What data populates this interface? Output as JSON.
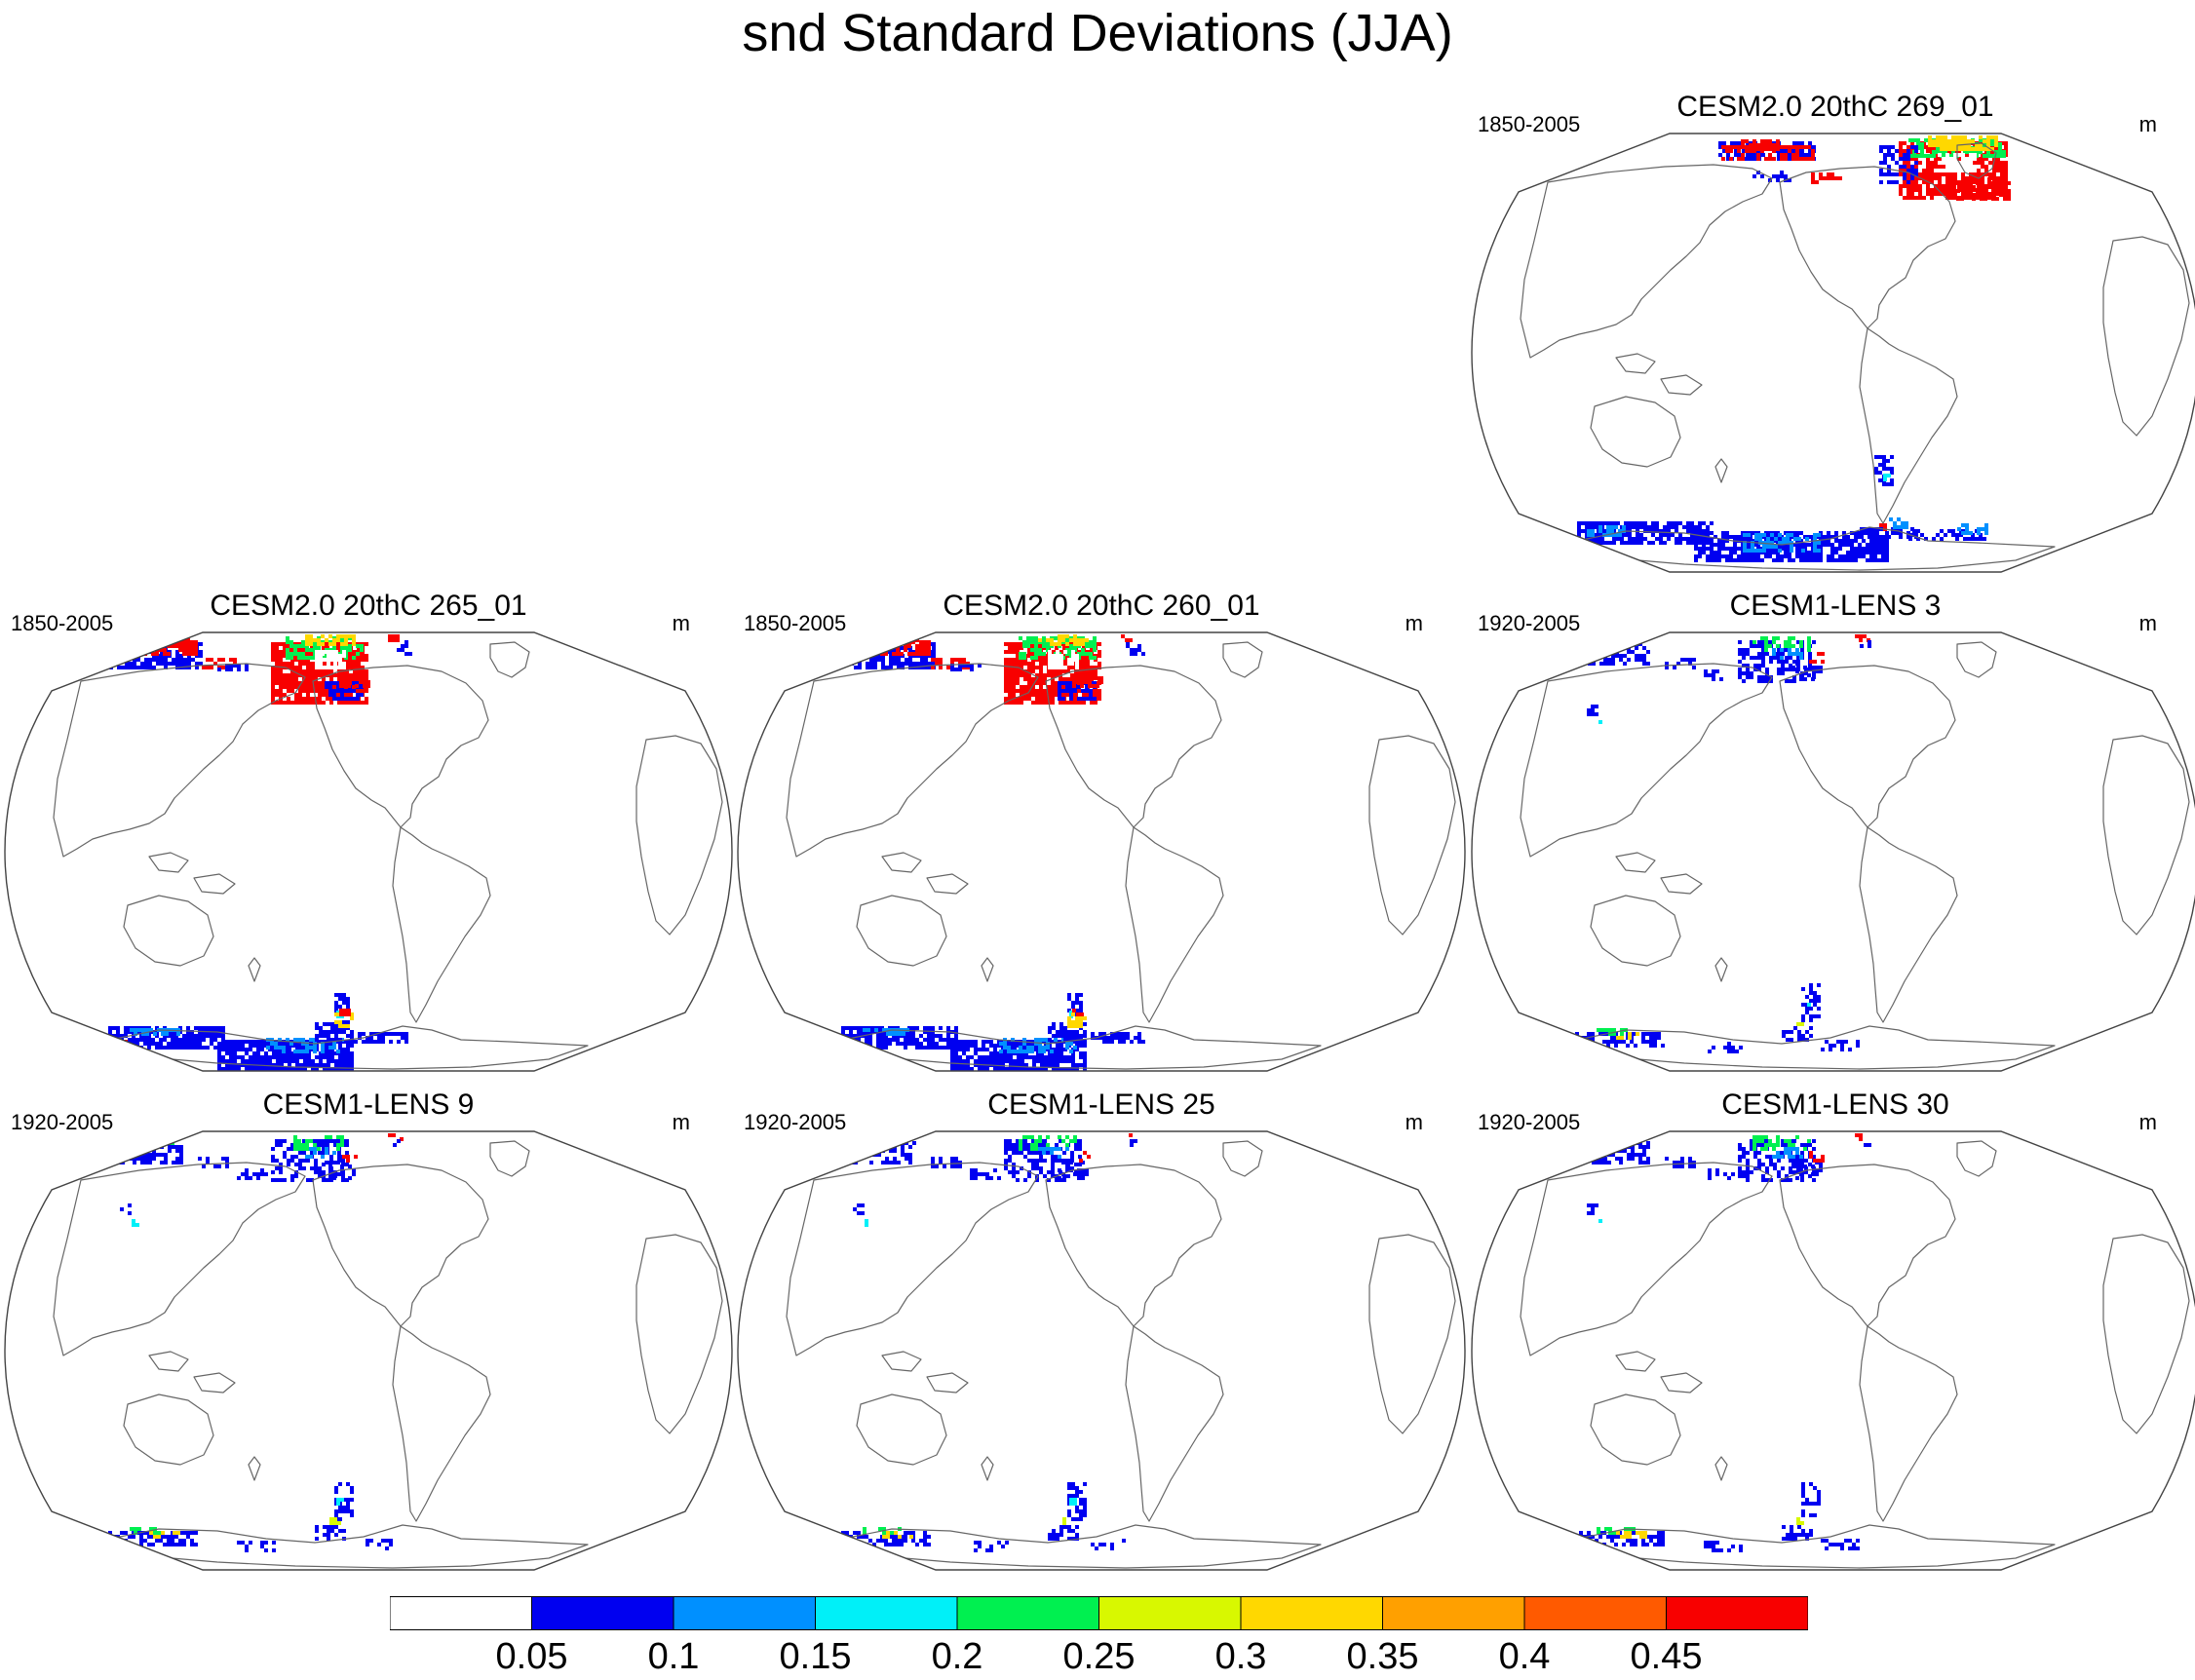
{
  "title": "snd Standard Deviations (JJA)",
  "panels": [
    {
      "id": "p1",
      "title": "CESM2.0 20thC 269_01",
      "period": "1850-2005",
      "unit": "m"
    },
    {
      "id": "p2",
      "title": "CESM2.0 20thC 265_01",
      "period": "1850-2005",
      "unit": "m"
    },
    {
      "id": "p3",
      "title": "CESM2.0 20thC 260_01",
      "period": "1850-2005",
      "unit": "m"
    },
    {
      "id": "p4",
      "title": "CESM1-LENS 3",
      "period": "1920-2005",
      "unit": "m"
    },
    {
      "id": "p5",
      "title": "CESM1-LENS 9",
      "period": "1920-2005",
      "unit": "m"
    },
    {
      "id": "p6",
      "title": "CESM1-LENS 25",
      "period": "1920-2005",
      "unit": "m"
    },
    {
      "id": "p7",
      "title": "CESM1-LENS 30",
      "period": "1920-2005",
      "unit": "m"
    }
  ],
  "colorbar": {
    "labels": [
      "0.05",
      "0.1",
      "0.15",
      "0.2",
      "0.25",
      "0.3",
      "0.35",
      "0.4",
      "0.45"
    ],
    "colors": [
      "#ffffff",
      "#0000f0",
      "#0090ff",
      "#00f0f8",
      "#00f050",
      "#d8f800",
      "#ffd800",
      "#ffa000",
      "#ff5a00",
      "#f80000"
    ]
  },
  "colors": {
    "coastline": "#666666",
    "outline": "#444444"
  }
}
